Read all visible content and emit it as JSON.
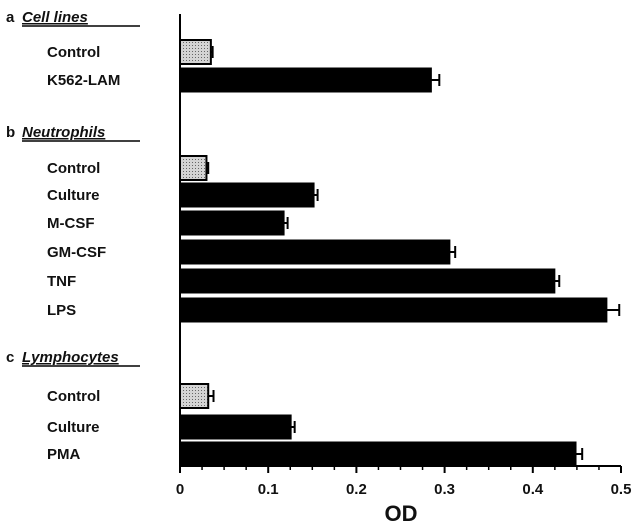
{
  "chart_data": {
    "type": "bar",
    "orientation": "horizontal",
    "xlabel": "OD",
    "xlim": [
      0,
      0.5
    ],
    "xticks": [
      "0",
      "0.1",
      "0.2",
      "0.3",
      "0.4",
      "0.5"
    ],
    "colors": {
      "control": "#bdbdbd",
      "treated": "#000000"
    },
    "groups": [
      {
        "letter": "a",
        "title": "Cell lines",
        "bars": [
          {
            "label": "Control",
            "value": 0.035,
            "error": 0.002,
            "kind": "control"
          },
          {
            "label": "K562-LAM",
            "value": 0.285,
            "error": 0.009,
            "kind": "treated"
          }
        ]
      },
      {
        "letter": "b",
        "title": "Neutrophils",
        "bars": [
          {
            "label": "Control",
            "value": 0.03,
            "error": 0.002,
            "kind": "control"
          },
          {
            "label": "Culture",
            "value": 0.152,
            "error": 0.004,
            "kind": "treated"
          },
          {
            "label": "M-CSF",
            "value": 0.118,
            "error": 0.004,
            "kind": "treated"
          },
          {
            "label": "GM-CSF",
            "value": 0.306,
            "error": 0.006,
            "kind": "treated"
          },
          {
            "label": "TNF",
            "value": 0.425,
            "error": 0.005,
            "kind": "treated"
          },
          {
            "label": "LPS",
            "value": 0.484,
            "error": 0.014,
            "kind": "treated"
          }
        ]
      },
      {
        "letter": "c",
        "title": "Lymphocytes",
        "bars": [
          {
            "label": "Control",
            "value": 0.032,
            "error": 0.006,
            "kind": "control"
          },
          {
            "label": "Culture",
            "value": 0.126,
            "error": 0.004,
            "kind": "treated"
          },
          {
            "label": "PMA",
            "value": 0.449,
            "error": 0.007,
            "kind": "treated"
          }
        ]
      }
    ]
  }
}
